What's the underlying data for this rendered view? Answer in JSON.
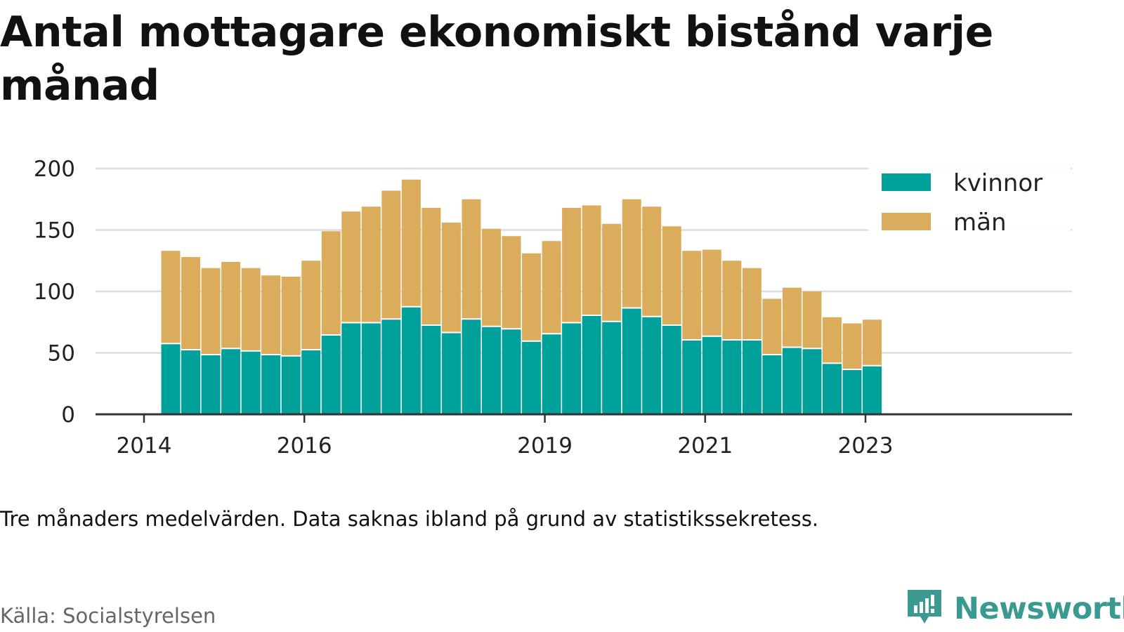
{
  "title": "Antal mottagare ekonomiskt bistånd varje månad",
  "note": "Tre månaders medelvärden. Data saknas ibland på grund av statistikssekretess.",
  "source": "Källa: Socialstyrelsen",
  "brand": {
    "name": "Newsworthy",
    "logo_icon": "newsworthy-chart-icon",
    "color": "#3a9a92"
  },
  "colors": {
    "kvinnor": "#00a19a",
    "man": "#dbac5c",
    "grid": "#dddddd",
    "axis": "#333333"
  },
  "chart_data": {
    "type": "bar",
    "stacked": true,
    "title": "Antal mottagare ekonomiskt bistånd varje månad",
    "xlabel": "",
    "ylabel": "",
    "ylim": [
      0,
      200
    ],
    "yticks": [
      0,
      50,
      100,
      150,
      200
    ],
    "xlim": [
      "2014-01",
      "2023-09"
    ],
    "xticks": [
      {
        "label": "2014",
        "x": "2014-01"
      },
      {
        "label": "2016",
        "x": "2016-01"
      },
      {
        "label": "2019",
        "x": "2019-01"
      },
      {
        "label": "2021",
        "x": "2021-01"
      },
      {
        "label": "2023",
        "x": "2023-01"
      }
    ],
    "grid": true,
    "legend_position": "top-right",
    "x": [
      "2014-05",
      "2014-08",
      "2014-11",
      "2015-02",
      "2015-05",
      "2015-08",
      "2015-11",
      "2016-02",
      "2016-05",
      "2016-08",
      "2016-11",
      "2017-02",
      "2017-05",
      "2017-08",
      "2017-11",
      "2018-02",
      "2018-05",
      "2018-08",
      "2018-11",
      "2019-02",
      "2019-05",
      "2019-08",
      "2019-11",
      "2020-02",
      "2020-05",
      "2020-08",
      "2020-11",
      "2021-02",
      "2021-05",
      "2021-08",
      "2021-11",
      "2022-02",
      "2022-05",
      "2022-08",
      "2022-11",
      "2023-02"
    ],
    "series": [
      {
        "name": "kvinnor",
        "color": "#00a19a",
        "values": [
          57,
          52,
          48,
          53,
          51,
          48,
          47,
          52,
          64,
          74,
          74,
          77,
          87,
          72,
          66,
          77,
          71,
          69,
          59,
          65,
          74,
          80,
          75,
          86,
          79,
          72,
          60,
          63,
          60,
          60,
          48,
          54,
          53,
          41,
          36,
          39
        ]
      },
      {
        "name": "män",
        "color": "#dbac5c",
        "values": [
          76,
          76,
          71,
          71,
          68,
          65,
          65,
          73,
          85,
          91,
          95,
          105,
          104,
          96,
          90,
          98,
          80,
          76,
          72,
          76,
          94,
          90,
          80,
          89,
          90,
          81,
          73,
          71,
          65,
          59,
          46,
          49,
          47,
          38,
          38,
          38
        ]
      }
    ]
  }
}
